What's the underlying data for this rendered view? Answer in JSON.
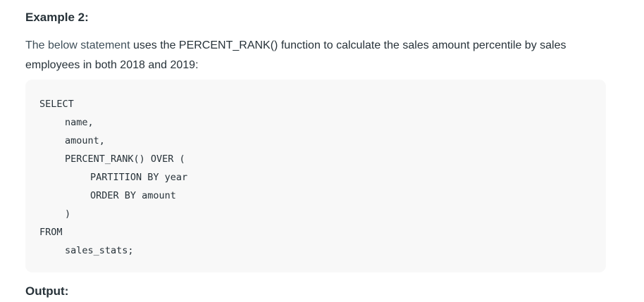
{
  "article": {
    "heading": "Example 2:",
    "paragraph": {
      "part1": "The below statement",
      "part2": " uses the PERCENT_RANK() function to calculate the sales amount percentile by sales employees in both 2018 and 2019:"
    },
    "code_lines": [
      "SELECT",
      "name,",
      "amount,",
      "PERCENT_RANK() OVER (",
      "PARTITION BY year",
      "ORDER BY amount",
      ")",
      "FROM",
      "sales_stats;"
    ],
    "output_heading": "Output:"
  }
}
